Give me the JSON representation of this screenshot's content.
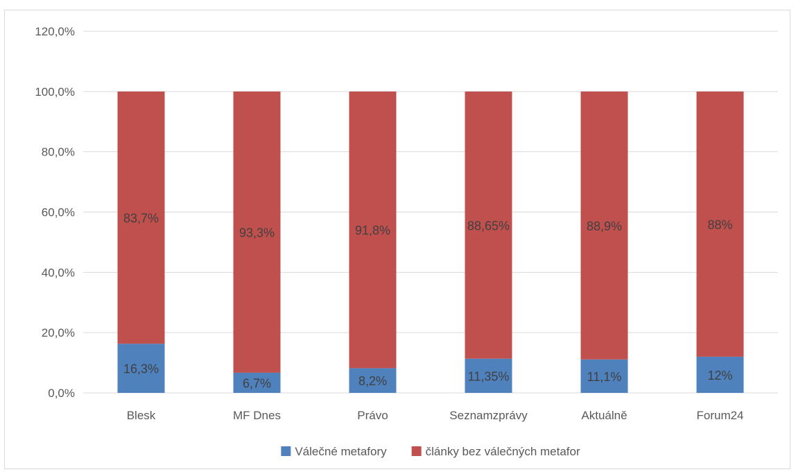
{
  "chart_data": {
    "type": "bar",
    "stacked": true,
    "categories": [
      "Blesk",
      "MF Dnes",
      "Právo",
      "Seznamzprávy",
      "Aktuálně",
      "Forum24"
    ],
    "series": [
      {
        "name": "Válečné metafory",
        "color": "#4f81bd",
        "values": [
          16.3,
          6.7,
          8.2,
          11.35,
          11.1,
          12
        ],
        "labels": [
          "16,3%",
          "6,7%",
          "8,2%",
          "11,35%",
          "11,1%",
          "12%"
        ]
      },
      {
        "name": "články bez válečných metafor",
        "color": "#c0504d",
        "values": [
          83.7,
          93.3,
          91.8,
          88.65,
          88.9,
          88
        ],
        "labels": [
          "83,7%",
          "93,3%",
          "91,8%",
          "88,65%",
          "88,9%",
          "88%"
        ]
      }
    ],
    "y_ticks": [
      "0,0%",
      "20,0%",
      "40,0%",
      "60,0%",
      "80,0%",
      "100,0%",
      "120,0%"
    ],
    "ylim": [
      0,
      120
    ],
    "grid": true,
    "legend": "bottom"
  }
}
